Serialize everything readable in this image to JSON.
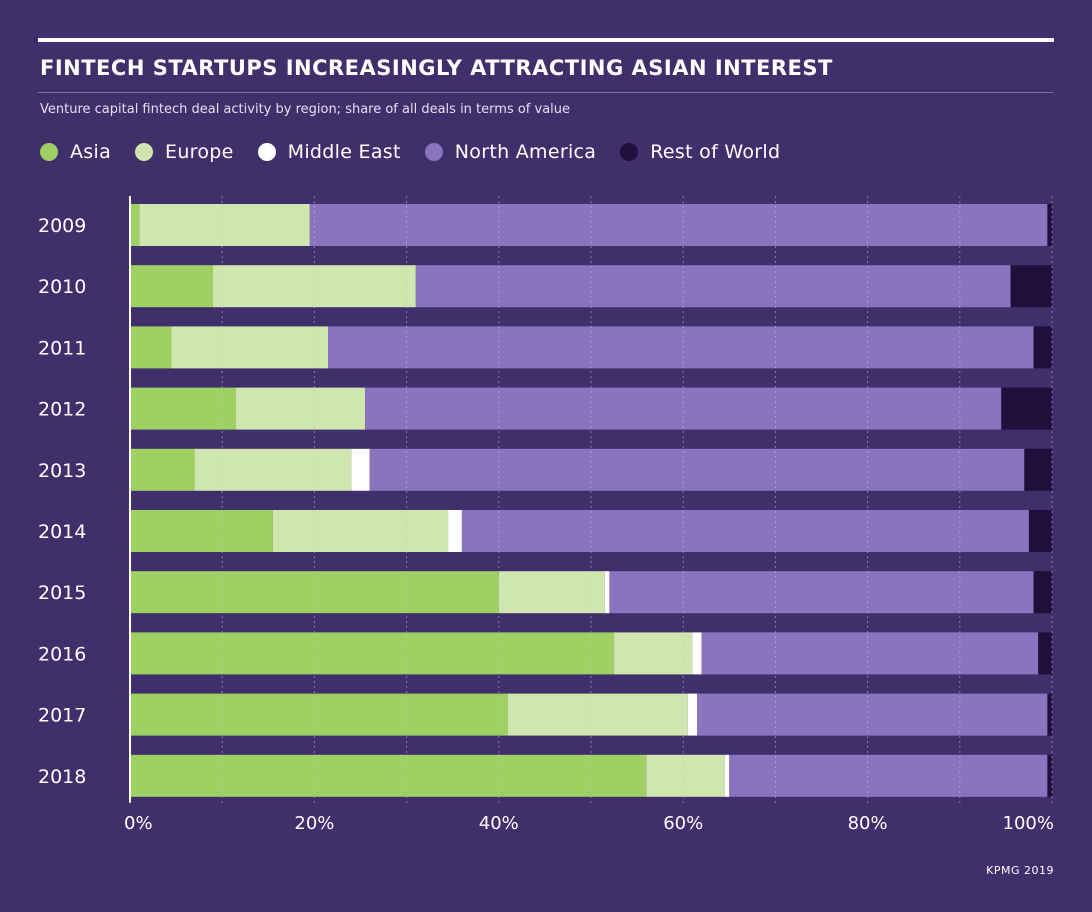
{
  "header": {
    "title": "FINTECH STARTUPS INCREASINGLY ATTRACTING ASIAN INTEREST",
    "subtitle": "Venture capital fintech deal activity by region; share of all deals in terms of value"
  },
  "legend": [
    {
      "label": "Asia",
      "color": "#9fd063"
    },
    {
      "label": "Europe",
      "color": "#cfe7ae"
    },
    {
      "label": "Middle East",
      "color": "#ffffff"
    },
    {
      "label": "North America",
      "color": "#8a73bf"
    },
    {
      "label": "Rest of World",
      "color": "#1f0f3a"
    }
  ],
  "source": "KPMG 2019",
  "chart_data": {
    "type": "bar",
    "orientation": "horizontal",
    "stacked": true,
    "title": "FINTECH STARTUPS INCREASINGLY ATTRACTING ASIAN INTEREST",
    "subtitle": "Venture capital fintech deal activity by region; share of all deals in terms of value",
    "categories": [
      "2009",
      "2010",
      "2011",
      "2012",
      "2013",
      "2014",
      "2015",
      "2016",
      "2017",
      "2018"
    ],
    "series": [
      {
        "name": "Asia",
        "color": "#9fd063",
        "values": [
          1,
          9,
          4.5,
          11.5,
          7,
          15.5,
          40,
          52.5,
          41,
          56
        ]
      },
      {
        "name": "Europe",
        "color": "#cfe7ae",
        "values": [
          18.5,
          22,
          17,
          14,
          17,
          19,
          11.5,
          8.5,
          19.5,
          8.5
        ]
      },
      {
        "name": "Middle East",
        "color": "#ffffff",
        "values": [
          0,
          0,
          0,
          0,
          2,
          1.5,
          0.5,
          1,
          1,
          0.5
        ]
      },
      {
        "name": "North America",
        "color": "#8a73bf",
        "values": [
          80,
          64.5,
          76.5,
          69,
          71,
          61.5,
          46,
          36.5,
          38,
          34.5
        ]
      },
      {
        "name": "Rest of World",
        "color": "#1f0f3a",
        "values": [
          0.5,
          4.5,
          2,
          5.5,
          3,
          2.5,
          2,
          1.5,
          0.5,
          0.5
        ]
      }
    ],
    "xlim": [
      0,
      100
    ],
    "xticks": [
      "0%",
      "20%",
      "40%",
      "60%",
      "80%",
      "100%"
    ],
    "grid": true,
    "legend_position": "top"
  }
}
